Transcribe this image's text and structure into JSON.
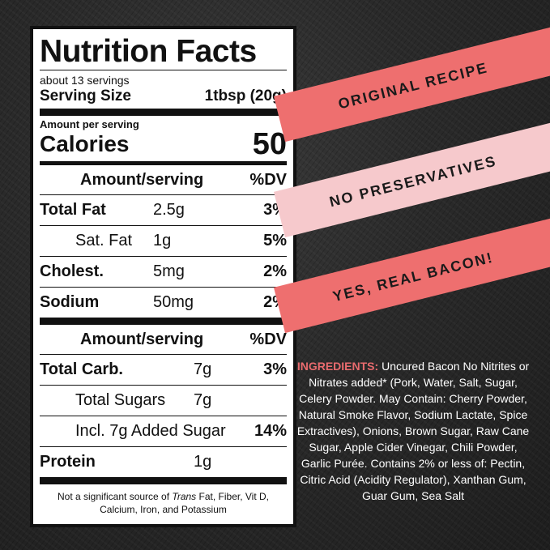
{
  "nutrition": {
    "title": "Nutrition Facts",
    "servings": "about 13 servings",
    "serving_size_label": "Serving Size",
    "serving_size_value": "1tbsp (20g)",
    "amount_per_serving": "Amount per serving",
    "calories_label": "Calories",
    "calories_value": "50",
    "header_amount": "Amount/serving",
    "header_dv": "%DV",
    "rows_a": [
      {
        "name": "Total Fat",
        "value": "2.5g",
        "dv": "3%"
      },
      {
        "name": "Sat. Fat",
        "value": "1g",
        "dv": "5%"
      },
      {
        "name": "Cholest.",
        "value": "5mg",
        "dv": "2%"
      },
      {
        "name": "Sodium",
        "value": "50mg",
        "dv": "2%"
      }
    ],
    "rows_b": [
      {
        "name": "Total Carb.",
        "value": "7g",
        "dv": "3%"
      },
      {
        "name": "Total Sugars",
        "value": "7g",
        "dv": ""
      },
      {
        "name": "Incl. 7g Added Sugar",
        "value": "",
        "dv": "14%"
      },
      {
        "name": "Protein",
        "value": "1g",
        "dv": ""
      }
    ],
    "footnote_prefix": "Not a significant source of ",
    "footnote_italic": "Trans",
    "footnote_suffix": " Fat, Fiber, Vit D, Calcium, Iron, and Potassium"
  },
  "banners": [
    "ORIGINAL RECIPE",
    "NO PRESERVATIVES",
    "YES, REAL BACON!"
  ],
  "ingredients": {
    "heading": "INGREDIENTS:",
    "text": " Uncured Bacon No Nitrites or Nitrates added* (Pork, Water, Salt, Sugar, Celery Powder. May Contain: Cherry Powder, Natural Smoke Flavor, Sodium Lactate, Spice Extractives), Onions, Brown Sugar, Raw Cane Sugar, Apple Cider Vinegar, Chili Powder, Garlic Purée. Contains 2% or less of: Pectin, Citric Acid (Acidity Regulator), Xanthan Gum, Guar Gum, Sea Salt"
  },
  "colors": {
    "banner_dark": "#ee6f6f",
    "banner_light": "#f6c9cc",
    "ingredients_heading": "#e96b6e",
    "background": "#2a2a2a"
  }
}
